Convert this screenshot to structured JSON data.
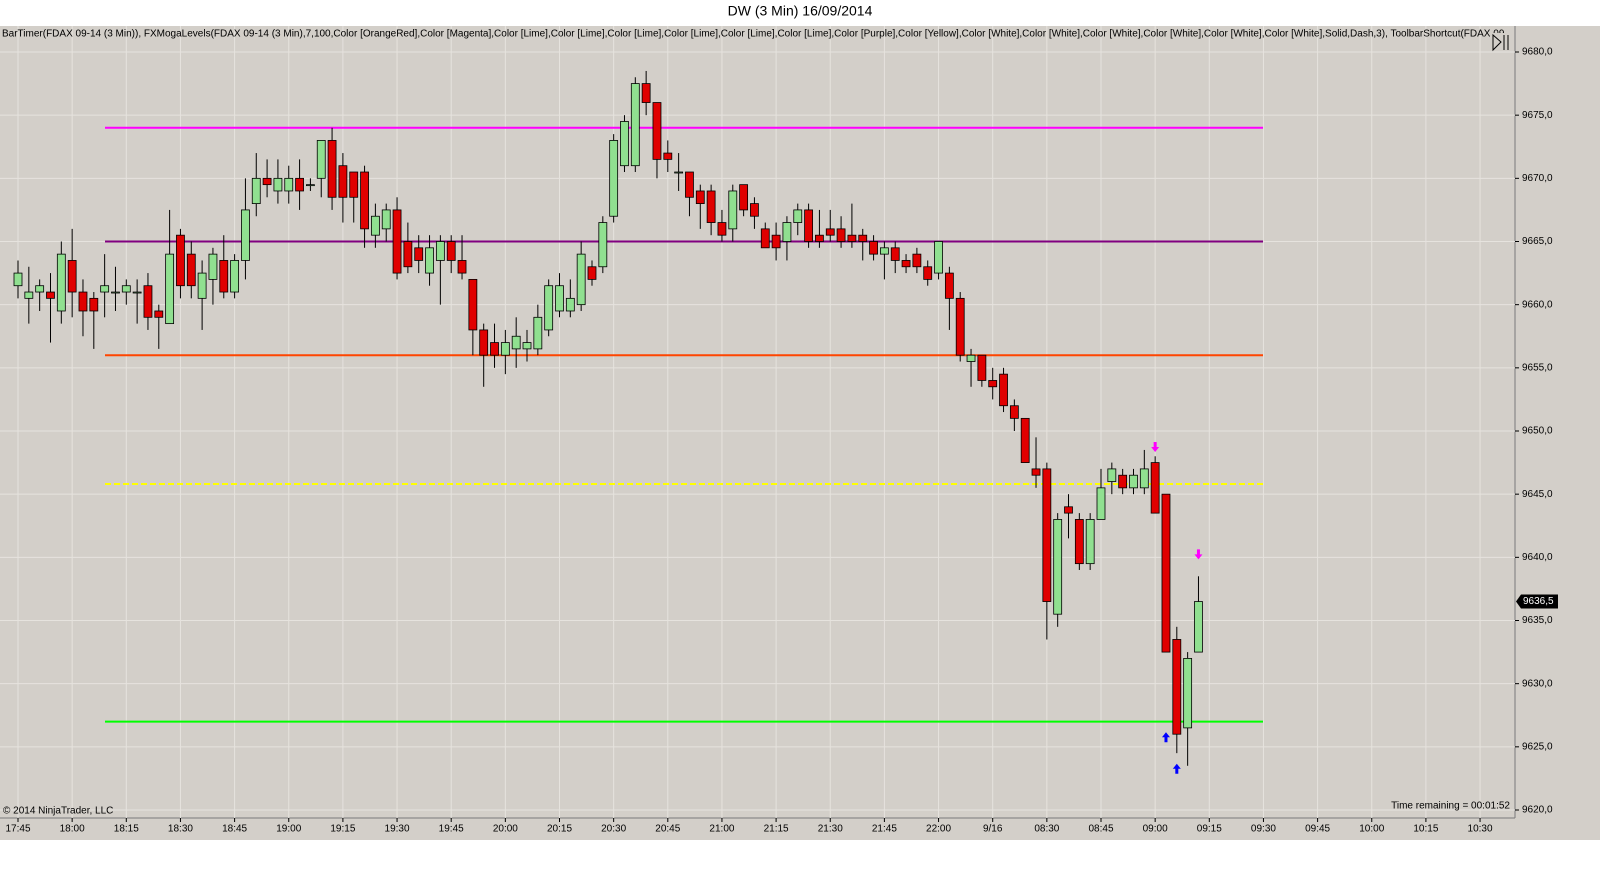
{
  "chart_data": {
    "type": "candlestick",
    "title": "DW (3 Min)  16/09/2014",
    "indicator_text": "BarTimer(FDAX 09-14 (3 Min)), FXMogaLevels(FDAX 09-14 (3 Min),7,100,Color [OrangeRed],Color [Magenta],Color [Lime],Color [Lime],Color [Lime],Color [Lime],Color [Lime],Color [Lime],Color [Purple],Color [Yellow],Color [White],Color [White],Color [White],Color [White],Color [White],Color [White],Solid,Dash,3), ToolbarShortcut(FDAX 09",
    "copyright": "© 2014 NinjaTrader, LLC",
    "time_remaining": "Time remaining = 00:01:52",
    "up_color": "#90e090",
    "down_color": "#e00000",
    "grid": true,
    "ylim": [
      9620,
      9680
    ],
    "yticks": [
      {
        "value": 9680,
        "label": "9680,0"
      },
      {
        "value": 9675,
        "label": "9675,0"
      },
      {
        "value": 9670,
        "label": "9670,0"
      },
      {
        "value": 9665,
        "label": "9665,0"
      },
      {
        "value": 9660,
        "label": "9660,0"
      },
      {
        "value": 9655,
        "label": "9655,0"
      },
      {
        "value": 9650,
        "label": "9650,0"
      },
      {
        "value": 9645,
        "label": "9645,0"
      },
      {
        "value": 9640,
        "label": "9640,0"
      },
      {
        "value": 9635,
        "label": "9635,0"
      },
      {
        "value": 9630,
        "label": "9630,0"
      },
      {
        "value": 9625,
        "label": "9625,0"
      },
      {
        "value": 9620,
        "label": "9620,0"
      }
    ],
    "xticks": [
      {
        "value": 0,
        "label": "17:45"
      },
      {
        "value": 5,
        "label": "18:00"
      },
      {
        "value": 10,
        "label": "18:15"
      },
      {
        "value": 15,
        "label": "18:30"
      },
      {
        "value": 20,
        "label": "18:45"
      },
      {
        "value": 25,
        "label": "19:00"
      },
      {
        "value": 30,
        "label": "19:15"
      },
      {
        "value": 35,
        "label": "19:30"
      },
      {
        "value": 40,
        "label": "19:45"
      },
      {
        "value": 45,
        "label": "20:00"
      },
      {
        "value": 50,
        "label": "20:15"
      },
      {
        "value": 55,
        "label": "20:30"
      },
      {
        "value": 60,
        "label": "20:45"
      },
      {
        "value": 65,
        "label": "21:00"
      },
      {
        "value": 70,
        "label": "21:15"
      },
      {
        "value": 75,
        "label": "21:30"
      },
      {
        "value": 80,
        "label": "21:45"
      },
      {
        "value": 85,
        "label": "22:00"
      },
      {
        "value": 90,
        "label": "9/16"
      },
      {
        "value": 95,
        "label": "08:30"
      },
      {
        "value": 100,
        "label": "08:45"
      },
      {
        "value": 105,
        "label": "09:00"
      },
      {
        "value": 110,
        "label": "09:15"
      },
      {
        "value": 115,
        "label": "09:30"
      },
      {
        "value": 120,
        "label": "09:45"
      },
      {
        "value": 125,
        "label": "10:00"
      },
      {
        "value": 130,
        "label": "10:15"
      },
      {
        "value": 135,
        "label": "10:30"
      }
    ],
    "open": [
      9661.5,
      9660.5,
      9661,
      9661,
      9659.5,
      9663.5,
      9661,
      9660.5,
      9661,
      9661,
      9661,
      9661,
      9661.5,
      9659.5,
      9658.5,
      9665.5,
      9664,
      9660.5,
      9662,
      9663.5,
      9661,
      9663.5,
      9668,
      9670,
      9669,
      9669,
      9670,
      9669.5,
      9670,
      9673,
      9671,
      9670.5,
      9670.5,
      9665.5,
      9666,
      9667.5,
      9665,
      9664.5,
      9662.5,
      9663.5,
      9665,
      9663.5,
      9662,
      9658,
      9657,
      9656,
      9656.5,
      9656.5,
      9656.5,
      9658,
      9659.5,
      9659.5,
      9660,
      9663,
      9663,
      9667,
      9671,
      9671,
      9677.5,
      9676,
      9672,
      9670.5,
      9670.5,
      9669,
      9669,
      9666.5,
      9666,
      9669.5,
      9668,
      9666,
      9665.5,
      9665,
      9666.5,
      9667.5,
      9665.5,
      9666,
      9666,
      9665.5,
      9665.5,
      9665,
      9664,
      9664.5,
      9663.5,
      9664,
      9663,
      9662.5,
      9662.5,
      9660.5,
      9655.5,
      9656,
      9654,
      9654.5,
      9652,
      9651,
      9647,
      9647,
      9635.5,
      9644,
      9643,
      9639.5,
      9643,
      9646,
      9646.5,
      9645.5,
      9645.5,
      9647.5,
      9645,
      9633.5,
      9626.5,
      9632.5
    ],
    "high": [
      9663.5,
      9663,
      9662,
      9662.5,
      9665,
      9666,
      9662,
      9661,
      9664,
      9663,
      9662,
      9662,
      9662.5,
      9660,
      9667.5,
      9666,
      9665,
      9663.5,
      9664.5,
      9665.5,
      9664,
      9670,
      9672,
      9671.5,
      9671.5,
      9671,
      9671.5,
      9670,
      9673,
      9674,
      9672,
      9670.5,
      9671,
      9668,
      9668,
      9668.5,
      9666.5,
      9665.5,
      9665.5,
      9665.5,
      9665.5,
      9665.5,
      9662,
      9658.5,
      9658.5,
      9658,
      9659,
      9658,
      9660,
      9662,
      9662.5,
      9662,
      9665,
      9663.5,
      9667,
      9673.5,
      9675,
      9678,
      9678.5,
      9676,
      9673,
      9672,
      9670.5,
      9669.5,
      9669.5,
      9667.5,
      9669.5,
      9669.5,
      9668.5,
      9666.5,
      9666.5,
      9667,
      9668,
      9668,
      9667.5,
      9667.5,
      9667,
      9668,
      9666,
      9665.5,
      9665,
      9665,
      9664,
      9664.5,
      9663.5,
      9665,
      9663,
      9661,
      9656.5,
      9656,
      9655,
      9655,
      9652.5,
      9651,
      9649.5,
      9647.5,
      9643.5,
      9645,
      9643.5,
      9643.5,
      9647,
      9647.5,
      9647,
      9647,
      9648.5,
      9648,
      9645,
      9634.5,
      9632.5,
      9638.5
    ],
    "low": [
      9660.5,
      9658.5,
      9659.5,
      9657,
      9658.5,
      9659,
      9657.5,
      9656.5,
      9659,
      9659.5,
      9660,
      9658.5,
      9658,
      9656.5,
      9658.5,
      9660.5,
      9660.5,
      9658,
      9660,
      9660.5,
      9660.5,
      9662,
      9667,
      9668.5,
      9668,
      9668,
      9667.5,
      9669,
      9668.5,
      9667.5,
      9666.5,
      9666.5,
      9664.5,
      9664.5,
      9665,
      9662,
      9662.5,
      9662.5,
      9661.5,
      9660,
      9662.5,
      9662,
      9656,
      9653.5,
      9655,
      9654.5,
      9655,
      9655.5,
      9656,
      9657.5,
      9659,
      9659,
      9659.5,
      9661.5,
      9662.5,
      9666.5,
      9670.5,
      9670.5,
      9675,
      9670,
      9670.5,
      9669,
      9667,
      9666,
      9665.5,
      9665,
      9665,
      9667,
      9666,
      9664.5,
      9663.5,
      9663.5,
      9665.5,
      9664.5,
      9664.5,
      9665,
      9664.5,
      9664.5,
      9663.5,
      9663.5,
      9662,
      9662.5,
      9662.5,
      9662.5,
      9661.5,
      9662,
      9658,
      9655.5,
      9653.5,
      9653.5,
      9652.5,
      9651.5,
      9650,
      9647.5,
      9645.5,
      9633.5,
      9634.5,
      9641.5,
      9639,
      9639,
      9643,
      9645,
      9645,
      9645,
      9645,
      9643.5,
      9632.5,
      9624.5,
      9623.5,
      9632.5
    ],
    "close": [
      9662.5,
      9661,
      9661.5,
      9660.5,
      9664,
      9661,
      9659.5,
      9659.5,
      9661.5,
      9661,
      9661.5,
      9661,
      9659,
      9659,
      9664,
      9661.5,
      9661.5,
      9662.5,
      9664,
      9661,
      9663.5,
      9667.5,
      9670,
      9669.5,
      9670,
      9670,
      9669,
      9669.5,
      9673,
      9668.5,
      9668.5,
      9668.5,
      9666,
      9667,
      9667.5,
      9662.5,
      9663,
      9663.5,
      9664.5,
      9665,
      9663.5,
      9662.5,
      9658,
      9656,
      9656,
      9657,
      9657.5,
      9657,
      9659,
      9661.5,
      9661.5,
      9660.5,
      9664,
      9662,
      9666.5,
      9673,
      9674.5,
      9677.5,
      9676,
      9671.5,
      9671.5,
      9670.5,
      9668.5,
      9668,
      9666.5,
      9665.5,
      9669,
      9667.5,
      9667,
      9664.5,
      9664.5,
      9666.5,
      9667.5,
      9665,
      9665,
      9665.5,
      9665,
      9665,
      9665,
      9664,
      9664.5,
      9663.5,
      9663,
      9663,
      9662,
      9665,
      9660.5,
      9656,
      9656,
      9654,
      9653.5,
      9652,
      9651,
      9647.5,
      9646.5,
      9636.5,
      9643,
      9643.5,
      9639.5,
      9643,
      9645.5,
      9647,
      9645.5,
      9646.5,
      9647,
      9643.5,
      9632.5,
      9626,
      9632,
      9636.5
    ],
    "levels": [
      {
        "value": 9674,
        "color": "#ff00ff",
        "dash": false
      },
      {
        "value": 9665,
        "color": "#800080",
        "dash": false
      },
      {
        "value": 9656,
        "color": "#ff4500",
        "dash": false
      },
      {
        "value": 9645.8,
        "color": "#ffff00",
        "dash": true
      },
      {
        "value": 9627,
        "color": "#00ff00",
        "dash": false
      }
    ],
    "signals": [
      {
        "bar": 105,
        "price": 9648.5,
        "direction": "down",
        "color": "#ff00ff"
      },
      {
        "bar": 109,
        "price": 9640,
        "direction": "down",
        "color": "#ff00ff"
      },
      {
        "bar": 106,
        "price": 9626,
        "direction": "up",
        "color": "#0000ff"
      },
      {
        "bar": 107,
        "price": 9623.5,
        "direction": "up",
        "color": "#0000ff"
      }
    ],
    "last_price": {
      "value": 9636.5,
      "label": "9636,5"
    }
  }
}
